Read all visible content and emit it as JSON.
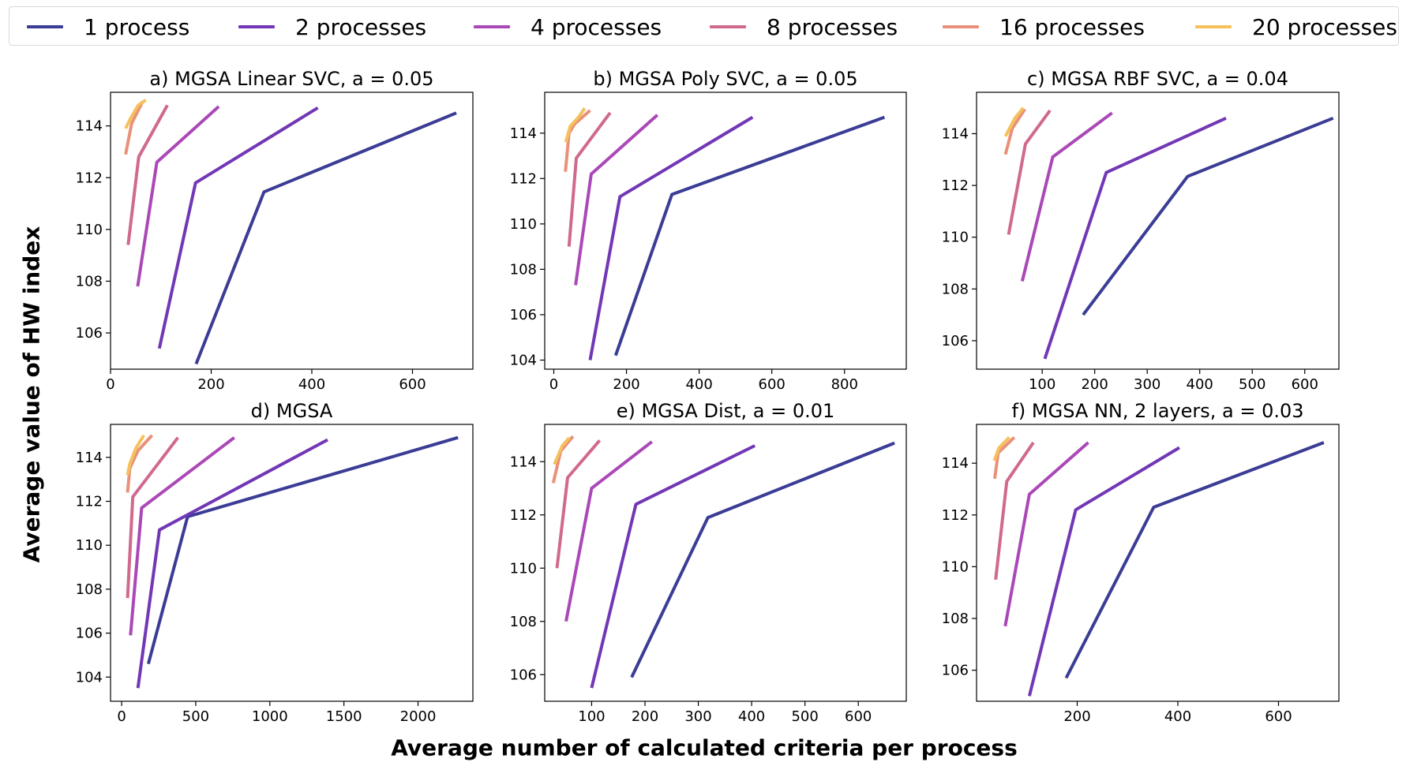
{
  "figure": {
    "ylabel": "Average value of HW index",
    "xlabel": "Average number of calculated criteria per process"
  },
  "legend": [
    {
      "name": "1 process",
      "color": "#3b3c95"
    },
    {
      "name": "2 processes",
      "color": "#7237b5"
    },
    {
      "name": "4 processes",
      "color": "#ab48b7"
    },
    {
      "name": "8 processes",
      "color": "#d0698e"
    },
    {
      "name": "16 processes",
      "color": "#e99179"
    },
    {
      "name": "20 processes",
      "color": "#f5c15c"
    }
  ],
  "chart_data": [
    {
      "type": "line",
      "title": "a) MGSA Linear SVC, a = 0.05",
      "xlim": [
        0,
        720
      ],
      "ylim": [
        104.6,
        115.3
      ],
      "xticks": [
        0,
        200,
        400,
        600
      ],
      "yticks": [
        106,
        108,
        110,
        112,
        114
      ],
      "series": [
        {
          "name": "1 process",
          "x": [
            170,
            305,
            687
          ],
          "y": [
            104.8,
            111.45,
            114.5
          ]
        },
        {
          "name": "2 processes",
          "x": [
            97,
            169,
            412
          ],
          "y": [
            105.4,
            111.8,
            114.7
          ]
        },
        {
          "name": "4 processes",
          "x": [
            54,
            92,
            215
          ],
          "y": [
            107.8,
            112.6,
            114.75
          ]
        },
        {
          "name": "8 processes",
          "x": [
            35,
            56,
            113
          ],
          "y": [
            109.4,
            112.8,
            114.8
          ]
        },
        {
          "name": "16 processes",
          "x": [
            30,
            42,
            64
          ],
          "y": [
            112.9,
            114.1,
            114.95
          ]
        },
        {
          "name": "20 processes",
          "x": [
            30,
            40,
            55,
            70
          ],
          "y": [
            113.9,
            114.3,
            114.8,
            115.0
          ]
        }
      ]
    },
    {
      "type": "line",
      "title": "b) MGSA Poly SVC, a = 0.05",
      "xlim": [
        -25,
        970
      ],
      "ylim": [
        103.6,
        115.8
      ],
      "xticks": [
        0,
        200,
        400,
        600,
        800
      ],
      "yticks": [
        104,
        106,
        108,
        110,
        112,
        114
      ],
      "series": [
        {
          "name": "1 process",
          "x": [
            170,
            325,
            910
          ],
          "y": [
            104.2,
            111.3,
            114.7
          ]
        },
        {
          "name": "2 processes",
          "x": [
            100,
            182,
            547
          ],
          "y": [
            104.0,
            111.2,
            114.7
          ]
        },
        {
          "name": "4 processes",
          "x": [
            60,
            103,
            285
          ],
          "y": [
            107.3,
            112.2,
            114.8
          ]
        },
        {
          "name": "8 processes",
          "x": [
            42,
            62,
            155
          ],
          "y": [
            109.0,
            112.9,
            114.9
          ]
        },
        {
          "name": "16 processes",
          "x": [
            32,
            42,
            57,
            100
          ],
          "y": [
            112.3,
            114.0,
            114.4,
            115.0
          ]
        },
        {
          "name": "20 processes",
          "x": [
            33,
            45,
            68,
            85
          ],
          "y": [
            113.6,
            114.3,
            114.7,
            115.1
          ]
        }
      ]
    },
    {
      "type": "line",
      "title": "c) MGSA RBF SVC, a = 0.04",
      "xlim": [
        -25,
        665
      ],
      "ylim": [
        104.9,
        115.6
      ],
      "xticks": [
        100,
        200,
        300,
        400,
        500,
        600
      ],
      "yticks": [
        106,
        108,
        110,
        112,
        114
      ],
      "series": [
        {
          "name": "1 process",
          "x": [
            178,
            377,
            654
          ],
          "y": [
            107.0,
            112.35,
            114.6
          ]
        },
        {
          "name": "2 processes",
          "x": [
            105,
            222,
            450
          ],
          "y": [
            105.3,
            112.5,
            114.6
          ]
        },
        {
          "name": "4 processes",
          "x": [
            62,
            120,
            233
          ],
          "y": [
            108.3,
            113.1,
            114.8
          ]
        },
        {
          "name": "8 processes",
          "x": [
            36,
            68,
            115
          ],
          "y": [
            110.1,
            113.6,
            114.9
          ]
        },
        {
          "name": "16 processes",
          "x": [
            30,
            43,
            67
          ],
          "y": [
            113.2,
            114.2,
            114.95
          ]
        },
        {
          "name": "20 processes",
          "x": [
            30,
            48,
            64
          ],
          "y": [
            113.9,
            114.6,
            115.0
          ]
        }
      ]
    },
    {
      "type": "line",
      "title": "d) MGSA",
      "xlim": [
        -75,
        2370
      ],
      "ylim": [
        102.9,
        115.5
      ],
      "xticks": [
        0,
        500,
        1000,
        1500,
        2000
      ],
      "yticks": [
        104,
        106,
        108,
        110,
        112,
        114
      ],
      "series": [
        {
          "name": "1 process",
          "x": [
            180,
            445,
            2270
          ],
          "y": [
            104.6,
            111.3,
            114.9
          ]
        },
        {
          "name": "2 processes",
          "x": [
            110,
            255,
            1390
          ],
          "y": [
            103.5,
            110.7,
            114.8
          ]
        },
        {
          "name": "4 processes",
          "x": [
            60,
            135,
            760
          ],
          "y": [
            105.9,
            111.7,
            114.9
          ]
        },
        {
          "name": "8 processes",
          "x": [
            40,
            75,
            380
          ],
          "y": [
            107.6,
            112.2,
            114.9
          ]
        },
        {
          "name": "16 processes",
          "x": [
            40,
            55,
            110,
            205
          ],
          "y": [
            112.4,
            113.5,
            114.3,
            115.0
          ]
        },
        {
          "name": "20 processes",
          "x": [
            40,
            55,
            95,
            150
          ],
          "y": [
            113.2,
            113.7,
            114.4,
            115.0
          ]
        }
      ]
    },
    {
      "type": "line",
      "title": "e) MGSA Dist, a = 0.01",
      "xlim": [
        12,
        690
      ],
      "ylim": [
        105.0,
        115.4
      ],
      "xticks": [
        100,
        200,
        300,
        400,
        500,
        600
      ],
      "yticks": [
        106,
        108,
        110,
        112,
        114
      ],
      "series": [
        {
          "name": "1 process",
          "x": [
            175,
            318,
            668
          ],
          "y": [
            105.9,
            111.9,
            114.7
          ]
        },
        {
          "name": "2 processes",
          "x": [
            100,
            183,
            406
          ],
          "y": [
            105.5,
            112.4,
            114.6
          ]
        },
        {
          "name": "4 processes",
          "x": [
            52,
            100,
            213
          ],
          "y": [
            108.0,
            113.0,
            114.75
          ]
        },
        {
          "name": "8 processes",
          "x": [
            35,
            55,
            115
          ],
          "y": [
            110.0,
            113.4,
            114.8
          ]
        },
        {
          "name": "16 processes",
          "x": [
            28,
            42,
            65
          ],
          "y": [
            113.2,
            114.4,
            114.95
          ]
        },
        {
          "name": "20 processes",
          "x": [
            30,
            45,
            58
          ],
          "y": [
            113.9,
            114.6,
            114.9
          ]
        }
      ]
    },
    {
      "type": "line",
      "title": "f) MGSA NN, 2 layers, a = 0.03",
      "xlim": [
        0,
        720
      ],
      "ylim": [
        104.8,
        115.5
      ],
      "xticks": [
        200,
        400,
        600
      ],
      "yticks": [
        106,
        108,
        110,
        112,
        114
      ],
      "series": [
        {
          "name": "1 process",
          "x": [
            178,
            352,
            690
          ],
          "y": [
            105.7,
            112.3,
            114.8
          ]
        },
        {
          "name": "2 processes",
          "x": [
            105,
            197,
            403
          ],
          "y": [
            105.0,
            112.2,
            114.6
          ]
        },
        {
          "name": "4 processes",
          "x": [
            57,
            105,
            222
          ],
          "y": [
            107.7,
            112.8,
            114.8
          ]
        },
        {
          "name": "8 processes",
          "x": [
            38,
            60,
            113
          ],
          "y": [
            109.5,
            113.3,
            114.8
          ]
        },
        {
          "name": "16 processes",
          "x": [
            36,
            43,
            75
          ],
          "y": [
            113.4,
            114.4,
            115.0
          ]
        },
        {
          "name": "20 processes",
          "x": [
            35,
            45,
            65
          ],
          "y": [
            114.1,
            114.6,
            115.0
          ]
        }
      ]
    }
  ]
}
